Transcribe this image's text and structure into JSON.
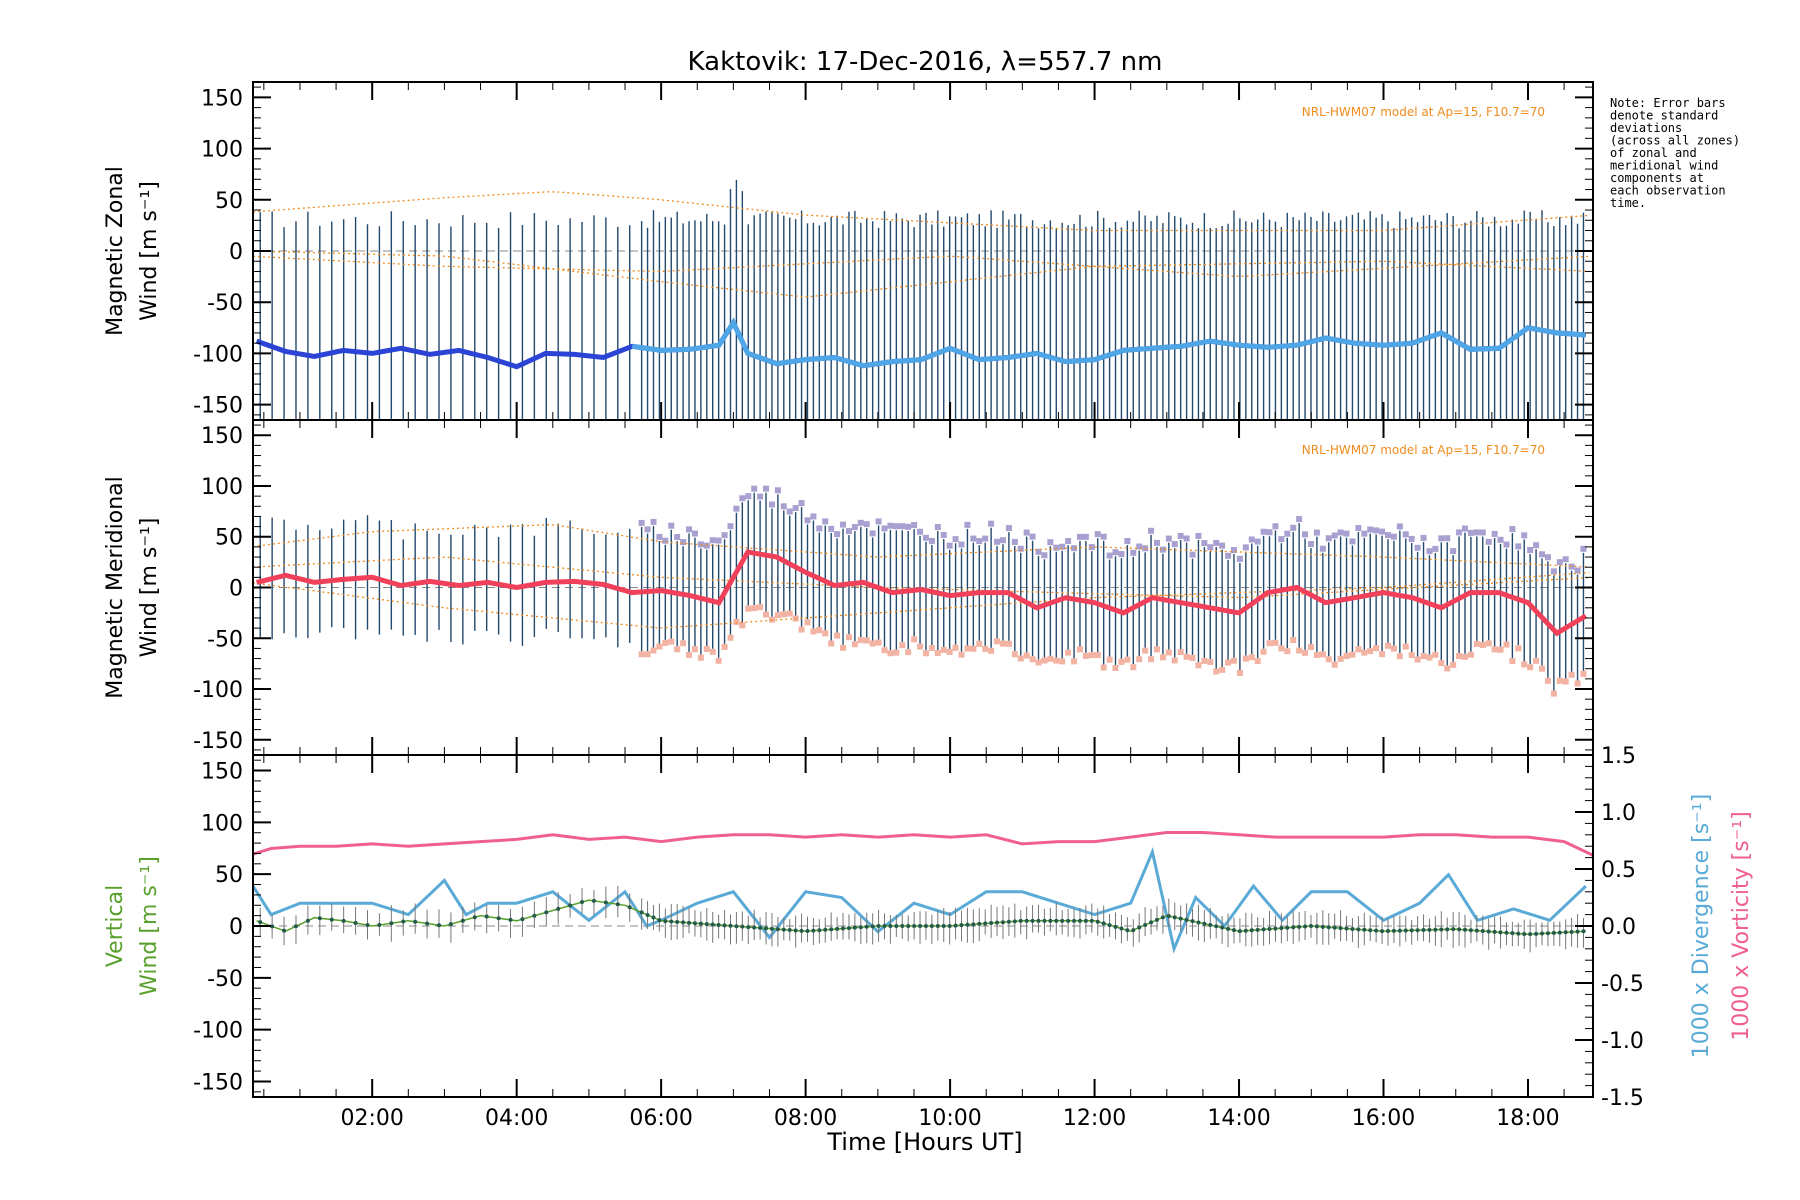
{
  "colors": {
    "axis": "#000000",
    "zonal_line": "#2b44d6",
    "zonal_line_late": "#4fa6e6",
    "meridional_line": "#f0405a",
    "errorbar": "#23496d",
    "model": "#f08c1e",
    "vertical": "#5aa02c",
    "divergence": "#5aaad8",
    "vorticity": "#f0608f",
    "scatter_pos": "#a8a0d0",
    "scatter_neg": "#f3b3a3"
  },
  "chart_data": {
    "type": "line",
    "title": "Kaktovik: 17-Dec-2016, λ=557.7 nm",
    "xlabel": "Time [Hours UT]",
    "x_ticks": [
      "02:00",
      "04:00",
      "06:00",
      "08:00",
      "10:00",
      "12:00",
      "14:00",
      "16:00",
      "18:00"
    ],
    "xlim": [
      0.35,
      18.9
    ],
    "note_lines": [
      "Note: Error bars",
      "denote standard",
      "deviations",
      "(across all zones)",
      "of zonal and",
      "meridional wind",
      "components at",
      "each observation",
      "time."
    ],
    "panels": [
      {
        "id": "zonal",
        "ylabel_line1": "Magnetic Zonal",
        "ylabel_line2": "Wind [m s⁻¹]",
        "ylim": [
          -165,
          165
        ],
        "y_ticks": [
          "150",
          "100",
          "50",
          "0",
          "-50",
          "-100",
          "-150"
        ],
        "model_label": "NRL-HWM07 model at Ap=15, F10.7=70",
        "series": [
          {
            "x": [
              0.4,
              0.8,
              1.2,
              1.6,
              2.0,
              2.4,
              2.8,
              3.2,
              3.6,
              4.0,
              4.4,
              4.8,
              5.2,
              5.6,
              6.0,
              6.4,
              6.8,
              7.0,
              7.2,
              7.6,
              8.0,
              8.4,
              8.8,
              9.2,
              9.6,
              10.0,
              10.4,
              10.8,
              11.2,
              11.6,
              12.0,
              12.4,
              12.8,
              13.2,
              13.6,
              14.0,
              14.4,
              14.8,
              15.2,
              15.6,
              16.0,
              16.4,
              16.8,
              17.2,
              17.6,
              18.0,
              18.4,
              18.8
            ],
            "values": [
              -88,
              -98,
              -103,
              -97,
              -100,
              -95,
              -101,
              -97,
              -104,
              -113,
              -100,
              -101,
              -104,
              -93,
              -97,
              -96,
              -92,
              -70,
              -100,
              -110,
              -106,
              -104,
              -112,
              -108,
              -106,
              -95,
              -106,
              -104,
              -100,
              -108,
              -106,
              -97,
              -95,
              -93,
              -88,
              -92,
              -94,
              -92,
              -85,
              -90,
              -92,
              -90,
              -80,
              -96,
              -95,
              -75,
              -80,
              -82
            ]
          }
        ]
      },
      {
        "id": "meridional",
        "ylabel_line1": "Magnetic Meridional",
        "ylabel_line2": "Wind [m s⁻¹]",
        "ylim": [
          -165,
          165
        ],
        "y_ticks": [
          "150",
          "100",
          "50",
          "0",
          "-50",
          "-100",
          "-150"
        ],
        "model_label": "NRL-HWM07 model at Ap=15, F10.7=70",
        "series": [
          {
            "x": [
              0.4,
              0.8,
              1.2,
              1.6,
              2.0,
              2.4,
              2.8,
              3.2,
              3.6,
              4.0,
              4.4,
              4.8,
              5.2,
              5.6,
              6.0,
              6.4,
              6.8,
              7.2,
              7.6,
              8.0,
              8.4,
              8.8,
              9.2,
              9.6,
              10.0,
              10.4,
              10.8,
              11.2,
              11.6,
              12.0,
              12.4,
              12.8,
              13.2,
              13.6,
              14.0,
              14.4,
              14.8,
              15.2,
              15.6,
              16.0,
              16.4,
              16.8,
              17.2,
              17.6,
              18.0,
              18.4,
              18.8
            ],
            "values": [
              5,
              12,
              5,
              8,
              10,
              2,
              6,
              2,
              5,
              0,
              5,
              6,
              3,
              -5,
              -3,
              -8,
              -15,
              35,
              30,
              15,
              2,
              5,
              -5,
              -2,
              -8,
              -5,
              -5,
              -20,
              -10,
              -15,
              -25,
              -10,
              -15,
              -20,
              -25,
              -5,
              0,
              -15,
              -10,
              -5,
              -10,
              -20,
              -5,
              -5,
              -15,
              -45,
              -28
            ]
          }
        ]
      },
      {
        "id": "vertical",
        "ylabel_line1": "Vertical",
        "ylabel_line2": "Wind [m s⁻¹]",
        "ylim": [
          -165,
          165
        ],
        "y_ticks": [
          "150",
          "100",
          "50",
          "0",
          "-50",
          "-100",
          "-150"
        ],
        "y2_ticks": [
          "1.5",
          "1.0",
          "0.5",
          "0.0",
          "-0.5",
          "-1.0",
          "-1.5"
        ],
        "y2_label_div": "1000 x Divergence [s⁻¹]",
        "y2_label_vor": "1000 x Vorticity [s⁻¹]",
        "y2lim": [
          -1.5,
          1.5
        ],
        "series": [
          {
            "name": "vorticity",
            "x": [
              0.3,
              0.6,
              1.0,
              1.5,
              2.0,
              2.5,
              3.0,
              3.5,
              4.0,
              4.5,
              5.0,
              5.5,
              6.0,
              6.5,
              7.0,
              7.5,
              8.0,
              8.5,
              9.0,
              9.5,
              10.0,
              10.5,
              11.0,
              11.5,
              12.0,
              12.5,
              13.0,
              13.5,
              14.0,
              14.5,
              15.0,
              15.5,
              16.0,
              16.5,
              17.0,
              17.5,
              18.0,
              18.5,
              18.9
            ],
            "values": [
              0.62,
              0.68,
              0.7,
              0.7,
              0.72,
              0.7,
              0.72,
              0.74,
              0.76,
              0.8,
              0.76,
              0.78,
              0.74,
              0.78,
              0.8,
              0.8,
              0.78,
              0.8,
              0.78,
              0.8,
              0.78,
              0.8,
              0.72,
              0.74,
              0.74,
              0.78,
              0.82,
              0.82,
              0.8,
              0.78,
              0.78,
              0.78,
              0.78,
              0.8,
              0.8,
              0.78,
              0.78,
              0.74,
              0.62
            ]
          },
          {
            "name": "divergence",
            "x": [
              0.3,
              0.6,
              1.0,
              1.5,
              2.0,
              2.5,
              3.0,
              3.3,
              3.6,
              4.0,
              4.5,
              5.0,
              5.5,
              5.8,
              6.0,
              6.5,
              7.0,
              7.5,
              8.0,
              8.5,
              9.0,
              9.5,
              10.0,
              10.5,
              11.0,
              11.5,
              12.0,
              12.5,
              12.8,
              13.1,
              13.4,
              13.8,
              14.2,
              14.6,
              15.0,
              15.5,
              16.0,
              16.5,
              16.9,
              17.3,
              17.8,
              18.3,
              18.8
            ],
            "values": [
              0.4,
              0.1,
              0.2,
              0.2,
              0.2,
              0.1,
              0.4,
              0.1,
              0.2,
              0.2,
              0.3,
              0.05,
              0.3,
              0.0,
              0.05,
              0.2,
              0.3,
              -0.1,
              0.3,
              0.25,
              -0.05,
              0.2,
              0.1,
              0.3,
              0.3,
              0.2,
              0.1,
              0.2,
              0.65,
              -0.2,
              0.25,
              0.0,
              0.35,
              0.05,
              0.3,
              0.3,
              0.05,
              0.2,
              0.45,
              0.05,
              0.15,
              0.05,
              0.35
            ]
          },
          {
            "name": "vertical",
            "x": [
              0.4,
              0.8,
              1.2,
              1.6,
              2.0,
              2.5,
              3.0,
              3.5,
              4.0,
              4.5,
              5.0,
              5.5,
              6.0,
              7.0,
              8.0,
              9.0,
              10.0,
              11.0,
              12.0,
              12.5,
              13.0,
              14.0,
              15.0,
              16.0,
              17.0,
              18.0,
              18.8
            ],
            "values": [
              5,
              -5,
              8,
              5,
              0,
              5,
              0,
              10,
              5,
              15,
              25,
              20,
              5,
              0,
              -5,
              0,
              0,
              5,
              5,
              -5,
              10,
              -5,
              0,
              -5,
              -3,
              -8,
              -5
            ]
          }
        ]
      }
    ]
  }
}
